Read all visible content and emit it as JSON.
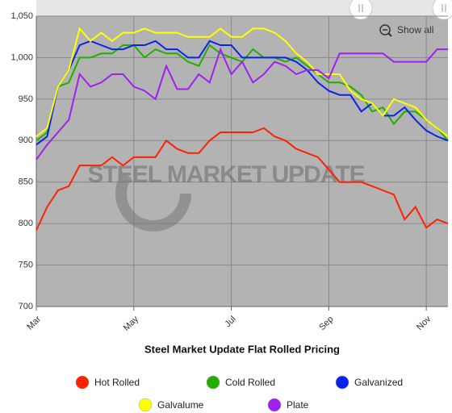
{
  "chart_data": {
    "type": "line",
    "title": "Steel Market Update Flat Rolled Pricing",
    "watermark": "STEEL MARKET UPDATE",
    "reset_zoom": "Show all",
    "categories": [
      "Mar",
      null,
      null,
      null,
      null,
      null,
      null,
      null,
      null,
      "May",
      null,
      null,
      null,
      null,
      null,
      null,
      null,
      null,
      "Jul",
      null,
      null,
      null,
      null,
      null,
      null,
      null,
      null,
      "Sep",
      null,
      null,
      null,
      null,
      null,
      null,
      null,
      null,
      "Nov",
      null,
      null
    ],
    "series": [
      {
        "name": "Hot Rolled",
        "color": "#ff2200",
        "values": [
          792,
          820,
          840,
          845,
          870,
          870,
          870,
          880,
          870,
          880,
          880,
          880,
          900,
          890,
          885,
          885,
          900,
          910,
          910,
          910,
          910,
          915,
          905,
          900,
          890,
          885,
          880,
          865,
          850,
          850,
          850,
          845,
          840,
          835,
          805,
          820,
          795,
          805,
          800
        ]
      },
      {
        "name": "Cold Rolled",
        "color": "#22b000",
        "values": [
          900,
          910,
          965,
          970,
          1000,
          1000,
          1005,
          1005,
          1015,
          1015,
          1000,
          1010,
          1005,
          1005,
          995,
          990,
          1015,
          1005,
          1000,
          995,
          1010,
          1000,
          1000,
          995,
          1000,
          990,
          980,
          970,
          970,
          965,
          955,
          935,
          940,
          920,
          935,
          935,
          925,
          915,
          900
        ]
      },
      {
        "name": "Galvanized",
        "color": "#0a22ee",
        "values": [
          895,
          905,
          965,
          985,
          1015,
          1020,
          1015,
          1010,
          1010,
          1015,
          1015,
          1020,
          1010,
          1010,
          1000,
          1000,
          1020,
          1015,
          1015,
          1000,
          1000,
          1000,
          1000,
          1000,
          995,
          985,
          970,
          960,
          955,
          955,
          935,
          945,
          930,
          930,
          940,
          925,
          912,
          905,
          900
        ]
      },
      {
        "name": "Galvalume",
        "color": "#ffff00",
        "values": [
          905,
          915,
          965,
          985,
          1035,
          1020,
          1030,
          1020,
          1030,
          1030,
          1035,
          1030,
          1030,
          1030,
          1025,
          1025,
          1025,
          1035,
          1025,
          1025,
          1035,
          1035,
          1030,
          1020,
          1005,
          995,
          980,
          980,
          980,
          960,
          950,
          945,
          930,
          950,
          945,
          940,
          925,
          915,
          905
        ]
      },
      {
        "name": "Plate",
        "color": "#a020f0",
        "values": [
          877,
          895,
          910,
          925,
          980,
          965,
          970,
          980,
          980,
          965,
          960,
          950,
          990,
          962,
          962,
          980,
          970,
          1010,
          980,
          995,
          970,
          980,
          995,
          990,
          980,
          985,
          985,
          975,
          1005,
          1005,
          1005,
          1005,
          1005,
          995,
          995,
          995,
          995,
          1010,
          1010
        ]
      }
    ],
    "ylim": [
      700,
      1050
    ],
    "yticks": [
      700,
      750,
      800,
      850,
      900,
      950,
      {
        "value": 1000,
        "label": "1,000"
      },
      {
        "value": 1050,
        "label": "1,050"
      }
    ],
    "grid": true
  }
}
